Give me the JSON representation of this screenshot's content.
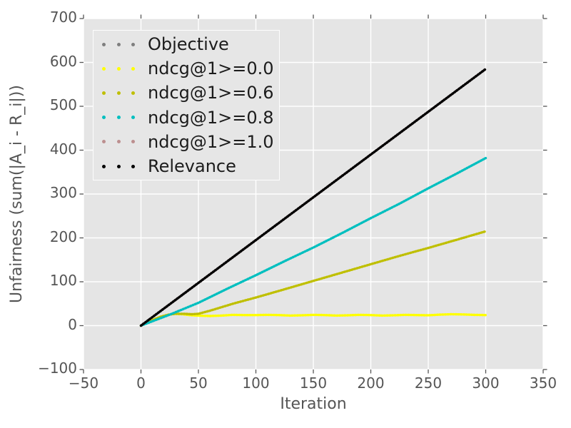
{
  "style": {
    "figure_bg": "#ffffff",
    "axes_bg": "#e5e5e5",
    "grid_color": "#ffffff",
    "tick_color": "#555555",
    "tick_label_color": "#555555",
    "axis_label_color": "#555555",
    "legend_bg": "#e6e6e6",
    "legend_border": "#fdfdfd",
    "legend_text_color": "#1c1c1c"
  },
  "chart_data": {
    "type": "line",
    "title": "",
    "xlabel": "Iteration",
    "ylabel": "Unfairness (sum(|A_i - R_i|))",
    "xlim": [
      -50,
      350
    ],
    "ylim": [
      -100,
      700
    ],
    "xticks": [
      -50,
      0,
      50,
      100,
      150,
      200,
      250,
      300,
      350
    ],
    "xtick_labels": [
      "−50",
      "0",
      "50",
      "100",
      "150",
      "200",
      "250",
      "300",
      "350"
    ],
    "yticks": [
      -100,
      0,
      100,
      200,
      300,
      400,
      500,
      600,
      700
    ],
    "ytick_labels": [
      "−100",
      "0",
      "100",
      "200",
      "300",
      "400",
      "500",
      "600",
      "700"
    ],
    "grid": true,
    "line_style": "dotted",
    "legend_loc": "upper left",
    "series": [
      {
        "name": "Objective",
        "color": "#7f7f7f",
        "points": [
          [
            0,
            0
          ],
          [
            300,
            585
          ]
        ]
      },
      {
        "name": "ndcg@1>=0.0",
        "color": "#ffff00",
        "points": [
          [
            0,
            0
          ],
          [
            6,
            8
          ],
          [
            12,
            15
          ],
          [
            18,
            21
          ],
          [
            24,
            25
          ],
          [
            30,
            27
          ],
          [
            36,
            26
          ],
          [
            42,
            24
          ],
          [
            48,
            23
          ],
          [
            54,
            22.5
          ],
          [
            60,
            22
          ],
          [
            70,
            23
          ],
          [
            80,
            24.5
          ],
          [
            90,
            24
          ],
          [
            100,
            24
          ],
          [
            110,
            24.5
          ],
          [
            120,
            24
          ],
          [
            130,
            23
          ],
          [
            140,
            23.5
          ],
          [
            150,
            24.5
          ],
          [
            160,
            24
          ],
          [
            170,
            23
          ],
          [
            180,
            23.5
          ],
          [
            190,
            24.5
          ],
          [
            200,
            24
          ],
          [
            210,
            23
          ],
          [
            220,
            23.5
          ],
          [
            230,
            24.5
          ],
          [
            240,
            24
          ],
          [
            250,
            23.5
          ],
          [
            260,
            25
          ],
          [
            270,
            26
          ],
          [
            280,
            25.5
          ],
          [
            290,
            24.5
          ],
          [
            300,
            24
          ]
        ]
      },
      {
        "name": "ndcg@1>=0.6",
        "color": "#bfbf00",
        "points": [
          [
            0,
            0
          ],
          [
            6,
            8
          ],
          [
            12,
            15
          ],
          [
            18,
            21
          ],
          [
            24,
            25
          ],
          [
            30,
            27
          ],
          [
            38,
            27
          ],
          [
            44,
            26
          ],
          [
            50,
            27
          ],
          [
            60,
            34
          ],
          [
            70,
            42
          ],
          [
            80,
            50
          ],
          [
            90,
            57
          ],
          [
            100,
            64
          ],
          [
            125,
            83
          ],
          [
            150,
            102
          ],
          [
            175,
            121
          ],
          [
            200,
            140
          ],
          [
            225,
            159
          ],
          [
            250,
            177
          ],
          [
            275,
            196
          ],
          [
            300,
            215
          ]
        ]
      },
      {
        "name": "ndcg@1>=0.8",
        "color": "#00bfbf",
        "points": [
          [
            0,
            0
          ],
          [
            12,
            12
          ],
          [
            25,
            25
          ],
          [
            50,
            52
          ],
          [
            75,
            84
          ],
          [
            100,
            115
          ],
          [
            125,
            147
          ],
          [
            150,
            178
          ],
          [
            175,
            211
          ],
          [
            200,
            245
          ],
          [
            225,
            278
          ],
          [
            250,
            313
          ],
          [
            275,
            347
          ],
          [
            300,
            382
          ]
        ]
      },
      {
        "name": "ndcg@1>=1.0",
        "color": "#bc8f8f",
        "points": [
          [
            0,
            0
          ],
          [
            300,
            585
          ]
        ]
      },
      {
        "name": "Relevance",
        "color": "#000000",
        "points": [
          [
            0,
            0
          ],
          [
            300,
            585
          ]
        ]
      }
    ]
  }
}
